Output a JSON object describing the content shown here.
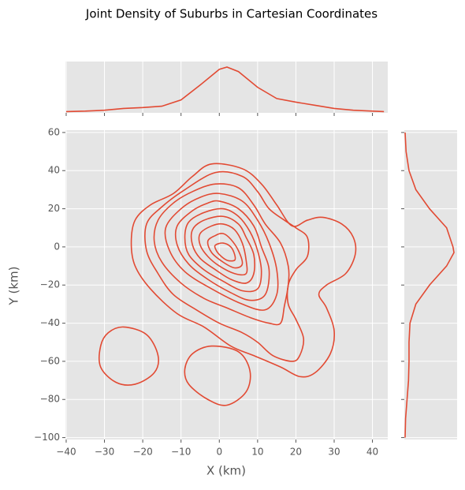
{
  "chart_data": {
    "type": "contour",
    "title": "Joint Density of Suburbs in Cartesian Coordinates",
    "x_label": "X (km)",
    "y_label": "Y (km)",
    "color": "#e24a33",
    "grid": true,
    "xlim": [
      -40.2,
      44
    ],
    "ylim": [
      -101,
      61.2
    ],
    "xticks": [
      {
        "value": -40,
        "label": "−40"
      },
      {
        "value": -30,
        "label": "−30"
      },
      {
        "value": -20,
        "label": "−20"
      },
      {
        "value": -10,
        "label": "−10"
      },
      0,
      10,
      20,
      30,
      40
    ],
    "yticks": [
      {
        "value": -100,
        "label": "−100"
      },
      {
        "value": -80,
        "label": "−80"
      },
      {
        "value": -60,
        "label": "−60"
      },
      {
        "value": -40,
        "label": "−40"
      },
      {
        "value": -20,
        "label": "−20"
      },
      0,
      20,
      40,
      60
    ],
    "contours": [
      {
        "x": [
          -2,
          6,
          11,
          15,
          19,
          23,
          27,
          32,
          35,
          35.5,
          33,
          28,
          26,
          28,
          30,
          29,
          25,
          21,
          16,
          9,
          3,
          -4,
          -11,
          -18,
          -22,
          -23,
          -22,
          -18,
          -12,
          -7
        ],
        "y": [
          43.5,
          41,
          33,
          22,
          11,
          14,
          15.5,
          12,
          5,
          -4,
          -14,
          -20,
          -25,
          -32,
          -44,
          -56,
          -66,
          -68,
          -63,
          -57,
          -52,
          -42,
          -35,
          -22,
          -10,
          2,
          14,
          22,
          28,
          37
        ]
      },
      {
        "x": [
          -1,
          6,
          10,
          13,
          17,
          20,
          23,
          23,
          20,
          18,
          18,
          20,
          22,
          21,
          19,
          14,
          10,
          6,
          0,
          -6,
          -12,
          -16,
          -19,
          -19,
          -15,
          -9
        ],
        "y": [
          39,
          37,
          29,
          20,
          14,
          10,
          5,
          -5,
          -12,
          -20,
          -30,
          -38,
          -48,
          -57,
          -60,
          -57,
          -50,
          -45,
          -40,
          -33,
          -25,
          -14,
          -2,
          12,
          21,
          30
        ]
      },
      {
        "x": [
          -1,
          5,
          9,
          12,
          16,
          18,
          18,
          17,
          16,
          13,
          8,
          2,
          -4,
          -10,
          -15,
          -17,
          -16,
          -12,
          -7
        ],
        "y": [
          33,
          31,
          22,
          12,
          2,
          -10,
          -20,
          -31,
          -40,
          -40,
          -37,
          -32,
          -27,
          -19,
          -8,
          3,
          14,
          23,
          29
        ]
      },
      {
        "x": [
          0,
          6,
          10,
          13,
          15,
          15,
          12,
          6,
          -2,
          -9,
          -13,
          -14,
          -10,
          -5
        ],
        "y": [
          28,
          24,
          14,
          2,
          -12,
          -25,
          -33,
          -30,
          -22,
          -13,
          -2,
          10,
          20,
          26
        ]
      },
      {
        "x": [
          0,
          5,
          9,
          11,
          13,
          12,
          8,
          3,
          -3,
          -8,
          -11,
          -11,
          -7,
          -3
        ],
        "y": [
          24,
          20,
          11,
          0,
          -12,
          -25,
          -28,
          -24,
          -17,
          -9,
          1,
          11,
          19,
          23
        ]
      },
      {
        "x": [
          1,
          5,
          8,
          10,
          11,
          10,
          6,
          1,
          -4,
          -8,
          -9,
          -8,
          -4
        ],
        "y": [
          20,
          16,
          8,
          -2,
          -13,
          -22,
          -23,
          -18,
          -12,
          -4,
          5,
          13,
          18
        ]
      },
      {
        "x": [
          1,
          5,
          7,
          9,
          9,
          7,
          3,
          -1,
          -5,
          -7,
          -7,
          -4
        ],
        "y": [
          16,
          12,
          5,
          -4,
          -14,
          -19,
          -17,
          -12,
          -6,
          1,
          9,
          14
        ]
      },
      {
        "x": [
          1,
          4,
          6,
          7,
          7,
          4,
          0,
          -3,
          -5,
          -5,
          -2
        ],
        "y": [
          12,
          9,
          2,
          -7,
          -14,
          -14,
          -10,
          -5,
          1,
          7,
          11
        ]
      },
      {
        "x": [
          1,
          3,
          5,
          6,
          4,
          1,
          -2,
          -3,
          -1
        ],
        "y": [
          7,
          4,
          -2,
          -9,
          -11,
          -8,
          -3,
          3,
          6
        ]
      },
      {
        "x": [
          1,
          3,
          4,
          4,
          2,
          0,
          -1,
          -1
        ],
        "y": [
          2,
          0,
          -4,
          -7,
          -7,
          -4,
          -1,
          1
        ]
      },
      {
        "x": [
          -25,
          -19,
          -16,
          -17,
          -22,
          -27,
          -31,
          -31,
          -29
        ],
        "y": [
          -42,
          -46,
          -57,
          -66,
          -72,
          -71,
          -63,
          -52,
          -45
        ]
      },
      {
        "x": [
          -2,
          5,
          8,
          7,
          2,
          -3,
          -8,
          -9,
          -7
        ],
        "y": [
          -52,
          -55,
          -65,
          -76,
          -83,
          -80,
          -72,
          -64,
          -56
        ]
      }
    ],
    "marginal_x": {
      "x": [
        -40,
        -35,
        -30,
        -25,
        -20,
        -15,
        -10,
        -5,
        0,
        2,
        5,
        10,
        15,
        20,
        25,
        30,
        35,
        40,
        43
      ],
      "density": [
        0.01,
        0.02,
        0.04,
        0.08,
        0.1,
        0.13,
        0.27,
        0.6,
        0.95,
        1.0,
        0.9,
        0.55,
        0.3,
        0.22,
        0.15,
        0.08,
        0.04,
        0.02,
        0.01
      ]
    },
    "marginal_y": {
      "y": [
        60,
        50,
        40,
        30,
        20,
        10,
        0,
        -3,
        -10,
        -20,
        -30,
        -40,
        -50,
        -60,
        -70,
        -80,
        -90,
        -100
      ],
      "density": [
        0.0,
        0.02,
        0.08,
        0.22,
        0.5,
        0.85,
        0.98,
        1.0,
        0.85,
        0.5,
        0.22,
        0.1,
        0.08,
        0.08,
        0.07,
        0.04,
        0.01,
        0.0
      ]
    }
  }
}
